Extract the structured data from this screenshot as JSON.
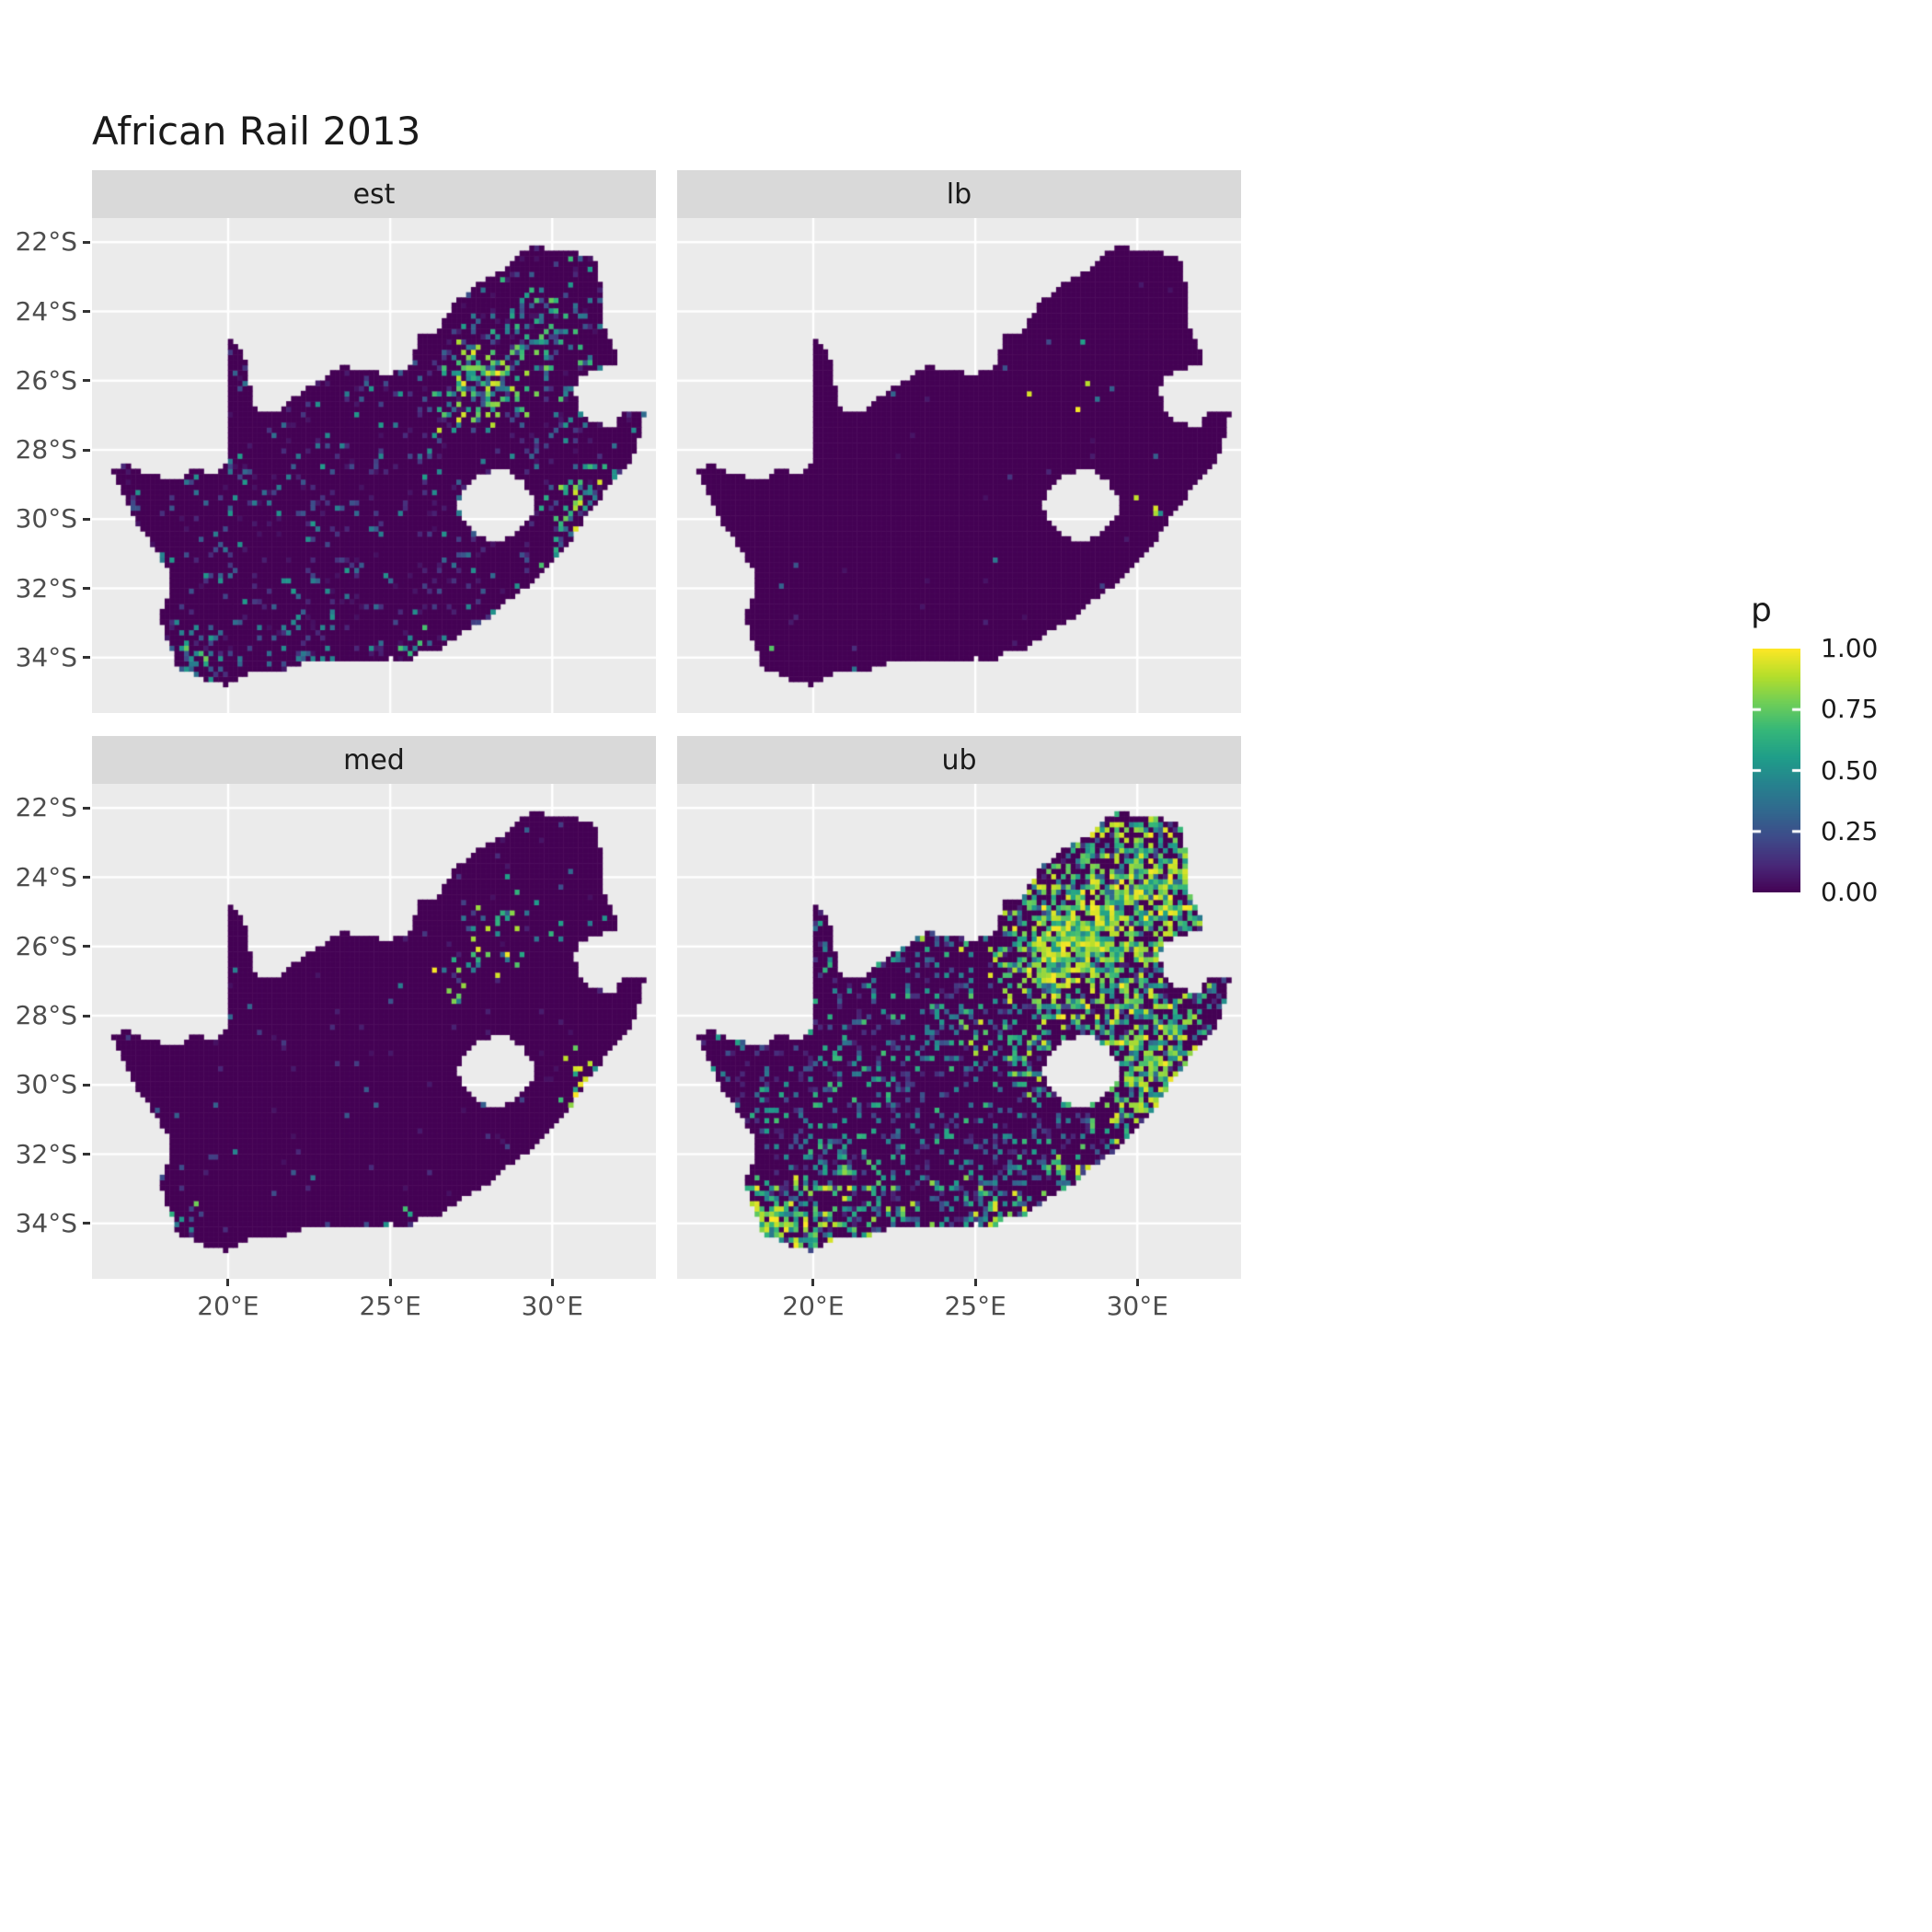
{
  "title": "African Rail 2013",
  "chart_data": {
    "type": "heatmap",
    "title": "African Rail 2013",
    "subtitle": "",
    "facets": [
      {
        "label": "est",
        "seed": 101,
        "speckle": {
          "base": {
            "d": 0.11,
            "vmin": 0.04,
            "vmax": 0.55,
            "pow": 2.0
          },
          "clusters": [
            {
              "lon": 28.05,
              "lat": -26.1,
              "r": 0.9,
              "d": 0.65,
              "vmin": 0.15,
              "vmax": 1.0
            },
            {
              "lon": 27.7,
              "lat": -25.6,
              "r": 0.7,
              "d": 0.35,
              "vmin": 0.1,
              "vmax": 0.9
            },
            {
              "lon": 26.95,
              "lat": -26.85,
              "r": 0.45,
              "d": 0.55,
              "vmin": 0.15,
              "vmax": 0.95
            },
            {
              "lon": 29.4,
              "lat": -24.9,
              "r": 1.4,
              "d": 0.22,
              "vmin": 0.08,
              "vmax": 0.8
            },
            {
              "lon": 29.9,
              "lat": -23.2,
              "r": 1.2,
              "d": 0.15,
              "vmin": 0.08,
              "vmax": 0.7
            },
            {
              "lon": 30.9,
              "lat": -29.7,
              "r": 0.7,
              "d": 0.55,
              "vmin": 0.2,
              "vmax": 1.0
            },
            {
              "lon": 30.3,
              "lat": -30.4,
              "r": 0.6,
              "d": 0.3,
              "vmin": 0.1,
              "vmax": 0.8
            },
            {
              "lon": 18.6,
              "lat": -33.95,
              "r": 0.55,
              "d": 0.5,
              "vmin": 0.15,
              "vmax": 0.9
            },
            {
              "lon": 19.5,
              "lat": -34.4,
              "r": 0.8,
              "d": 0.25,
              "vmin": 0.08,
              "vmax": 0.6
            },
            {
              "lon": 25.6,
              "lat": -33.9,
              "r": 0.5,
              "d": 0.3,
              "vmin": 0.1,
              "vmax": 0.8
            },
            {
              "lon": 27.9,
              "lat": -33.0,
              "r": 0.4,
              "d": 0.3,
              "vmin": 0.1,
              "vmax": 0.8
            },
            {
              "lon": 22.0,
              "lat": -33.8,
              "r": 1.5,
              "d": 0.12,
              "vmin": 0.05,
              "vmax": 0.5
            }
          ]
        }
      },
      {
        "label": "lb",
        "seed": 202,
        "speckle": {
          "base": {
            "d": 0.006,
            "vmin": 0.04,
            "vmax": 0.4,
            "pow": 2.0
          },
          "clusters": [
            {
              "lon": 28.05,
              "lat": -26.1,
              "r": 0.9,
              "d": 0.04,
              "vmin": 0.2,
              "vmax": 1.0
            },
            {
              "lon": 26.95,
              "lat": -26.85,
              "r": 0.4,
              "d": 0.06,
              "vmin": 0.3,
              "vmax": 1.0
            },
            {
              "lon": 30.9,
              "lat": -29.7,
              "r": 0.5,
              "d": 0.06,
              "vmin": 0.3,
              "vmax": 1.0
            },
            {
              "lon": 18.6,
              "lat": -33.95,
              "r": 0.4,
              "d": 0.04,
              "vmin": 0.2,
              "vmax": 0.9
            }
          ]
        }
      },
      {
        "label": "med",
        "seed": 303,
        "speckle": {
          "base": {
            "d": 0.018,
            "vmin": 0.04,
            "vmax": 0.45,
            "pow": 2.0
          },
          "clusters": [
            {
              "lon": 28.05,
              "lat": -26.0,
              "r": 1.0,
              "d": 0.2,
              "vmin": 0.15,
              "vmax": 1.0
            },
            {
              "lon": 26.95,
              "lat": -26.85,
              "r": 0.45,
              "d": 0.35,
              "vmin": 0.25,
              "vmax": 1.0
            },
            {
              "lon": 27.7,
              "lat": -25.6,
              "r": 0.6,
              "d": 0.15,
              "vmin": 0.1,
              "vmax": 0.9
            },
            {
              "lon": 30.9,
              "lat": -29.7,
              "r": 0.6,
              "d": 0.35,
              "vmin": 0.25,
              "vmax": 1.0
            },
            {
              "lon": 18.6,
              "lat": -33.95,
              "r": 0.5,
              "d": 0.15,
              "vmin": 0.15,
              "vmax": 0.9
            },
            {
              "lon": 29.6,
              "lat": -24.8,
              "r": 1.2,
              "d": 0.07,
              "vmin": 0.08,
              "vmax": 0.7
            },
            {
              "lon": 25.6,
              "lat": -33.9,
              "r": 0.4,
              "d": 0.12,
              "vmin": 0.1,
              "vmax": 0.8
            }
          ]
        }
      },
      {
        "label": "ub",
        "seed": 404,
        "speckle": {
          "base": {
            "d": 0.22,
            "vmin": 0.08,
            "vmax": 0.7,
            "pow": 1.6
          },
          "clusters": [
            {
              "lon": 28.2,
              "lat": -25.9,
              "r": 1.5,
              "d": 0.95,
              "vmin": 0.45,
              "vmax": 1.0
            },
            {
              "lon": 27.3,
              "lat": -26.9,
              "r": 0.8,
              "d": 0.6,
              "vmin": 0.3,
              "vmax": 1.0
            },
            {
              "lon": 29.8,
              "lat": -23.6,
              "r": 1.8,
              "d": 0.5,
              "vmin": 0.25,
              "vmax": 1.0
            },
            {
              "lon": 31.2,
              "lat": -24.6,
              "r": 1.2,
              "d": 0.45,
              "vmin": 0.25,
              "vmax": 1.0
            },
            {
              "lon": 31.0,
              "lat": -25.8,
              "r": 0.9,
              "d": 0.5,
              "vmin": 0.3,
              "vmax": 1.0
            },
            {
              "lon": 29.0,
              "lat": -25.5,
              "r": 3.0,
              "d": 0.3,
              "vmin": 0.2,
              "vmax": 0.95
            },
            {
              "lon": 30.8,
              "lat": -29.4,
              "r": 1.2,
              "d": 0.75,
              "vmin": 0.3,
              "vmax": 1.0
            },
            {
              "lon": 30.3,
              "lat": -28.4,
              "r": 1.5,
              "d": 0.4,
              "vmin": 0.2,
              "vmax": 0.95
            },
            {
              "lon": 29.8,
              "lat": -30.8,
              "r": 0.9,
              "d": 0.45,
              "vmin": 0.25,
              "vmax": 0.95
            },
            {
              "lon": 18.7,
              "lat": -33.9,
              "r": 0.8,
              "d": 0.8,
              "vmin": 0.35,
              "vmax": 1.0
            },
            {
              "lon": 19.8,
              "lat": -34.4,
              "r": 1.2,
              "d": 0.5,
              "vmin": 0.3,
              "vmax": 1.0
            },
            {
              "lon": 22.5,
              "lat": -34.0,
              "r": 1.2,
              "d": 0.35,
              "vmin": 0.2,
              "vmax": 0.9
            },
            {
              "lon": 25.6,
              "lat": -33.8,
              "r": 0.8,
              "d": 0.5,
              "vmin": 0.3,
              "vmax": 1.0
            },
            {
              "lon": 27.9,
              "lat": -32.9,
              "r": 0.7,
              "d": 0.45,
              "vmin": 0.3,
              "vmax": 1.0
            },
            {
              "lon": 26.5,
              "lat": -29.2,
              "r": 0.8,
              "d": 0.3,
              "vmin": 0.2,
              "vmax": 0.9
            },
            {
              "lon": 24.7,
              "lat": -28.7,
              "r": 0.5,
              "d": 0.3,
              "vmin": 0.2,
              "vmax": 0.9
            },
            {
              "lon": 20.3,
              "lat": -33.0,
              "r": 1.5,
              "d": 0.2,
              "vmin": 0.15,
              "vmax": 0.8
            }
          ]
        }
      }
    ],
    "x_ticks": [
      {
        "lon": 20,
        "label": "20°E"
      },
      {
        "lon": 25,
        "label": "25°E"
      },
      {
        "lon": 30,
        "label": "30°E"
      }
    ],
    "y_ticks": [
      {
        "lat": -22,
        "label": "22°S"
      },
      {
        "lat": -24,
        "label": "24°S"
      },
      {
        "lat": -26,
        "label": "26°S"
      },
      {
        "lat": -28,
        "label": "28°S"
      },
      {
        "lat": -30,
        "label": "30°S"
      },
      {
        "lat": -32,
        "label": "32°S"
      },
      {
        "lat": -34,
        "label": "34°S"
      }
    ],
    "lon_range": [
      15.8,
      33.2
    ],
    "lat_range": [
      -35.6,
      -21.3
    ],
    "legend": {
      "title": "p",
      "range": [
        0,
        1
      ],
      "colormap": "viridis",
      "ticks": [
        {
          "value": 1.0,
          "label": "1.00"
        },
        {
          "value": 0.75,
          "label": "0.75"
        },
        {
          "value": 0.5,
          "label": "0.50"
        },
        {
          "value": 0.25,
          "label": "0.25"
        },
        {
          "value": 0.0,
          "label": "0.00"
        }
      ]
    },
    "colors": {
      "background": "#FFFFFF",
      "panel_bg": "#EBEBEB",
      "strip_bg": "#D9D9D9",
      "grid": "#FFFFFF",
      "base_fill": "#440154",
      "axis_text": "#4D4D4D",
      "tick_mark": "#333333",
      "viridis_stops": [
        "#440154",
        "#482878",
        "#3E4A89",
        "#31688E",
        "#26828E",
        "#1F9E89",
        "#35B779",
        "#6ECE58",
        "#B5DE2B",
        "#FDE725"
      ]
    },
    "map": {
      "region": "South Africa",
      "outline": [
        [
          16.45,
          -28.6
        ],
        [
          16.95,
          -28.4
        ],
        [
          17.35,
          -28.7
        ],
        [
          17.95,
          -28.78
        ],
        [
          18.5,
          -28.87
        ],
        [
          19.0,
          -28.5
        ],
        [
          19.5,
          -28.73
        ],
        [
          19.98,
          -28.42
        ],
        [
          19.98,
          -24.77
        ],
        [
          20.35,
          -25.1
        ],
        [
          20.6,
          -25.5
        ],
        [
          20.63,
          -26.05
        ],
        [
          20.85,
          -26.82
        ],
        [
          21.55,
          -26.85
        ],
        [
          22.15,
          -26.4
        ],
        [
          22.85,
          -26.0
        ],
        [
          23.45,
          -25.6
        ],
        [
          24.05,
          -25.65
        ],
        [
          24.8,
          -25.82
        ],
        [
          25.4,
          -25.72
        ],
        [
          25.65,
          -25.45
        ],
        [
          25.9,
          -24.72
        ],
        [
          26.45,
          -24.62
        ],
        [
          26.9,
          -23.9
        ],
        [
          27.25,
          -23.55
        ],
        [
          27.95,
          -23.05
        ],
        [
          28.4,
          -22.85
        ],
        [
          29.05,
          -22.22
        ],
        [
          29.5,
          -22.13
        ],
        [
          30.0,
          -22.25
        ],
        [
          30.55,
          -22.3
        ],
        [
          31.3,
          -22.4
        ],
        [
          31.55,
          -23.5
        ],
        [
          31.55,
          -24.4
        ],
        [
          31.9,
          -25.0
        ],
        [
          32.02,
          -25.45
        ],
        [
          31.35,
          -25.72
        ],
        [
          30.8,
          -25.85
        ],
        [
          30.68,
          -26.4
        ],
        [
          30.88,
          -26.9
        ],
        [
          31.2,
          -27.2
        ],
        [
          31.65,
          -27.32
        ],
        [
          31.97,
          -27.3
        ],
        [
          32.13,
          -26.85
        ],
        [
          32.89,
          -26.86
        ],
        [
          32.58,
          -27.95
        ],
        [
          32.28,
          -28.55
        ],
        [
          31.75,
          -29.05
        ],
        [
          31.05,
          -29.88
        ],
        [
          30.55,
          -30.65
        ],
        [
          29.95,
          -31.25
        ],
        [
          29.25,
          -31.95
        ],
        [
          28.55,
          -32.4
        ],
        [
          27.9,
          -32.95
        ],
        [
          27.35,
          -33.2
        ],
        [
          26.5,
          -33.75
        ],
        [
          25.95,
          -33.72
        ],
        [
          25.65,
          -34.05
        ],
        [
          24.95,
          -34.02
        ],
        [
          24.0,
          -34.1
        ],
        [
          23.3,
          -34.1
        ],
        [
          22.55,
          -34.05
        ],
        [
          22.15,
          -34.2
        ],
        [
          21.5,
          -34.42
        ],
        [
          20.5,
          -34.48
        ],
        [
          20.0,
          -34.82
        ],
        [
          19.3,
          -34.62
        ],
        [
          18.82,
          -34.38
        ],
        [
          18.42,
          -34.32
        ],
        [
          18.32,
          -33.92
        ],
        [
          18.02,
          -33.2
        ],
        [
          17.88,
          -32.78
        ],
        [
          18.28,
          -32.05
        ],
        [
          18.22,
          -31.55
        ],
        [
          17.55,
          -30.6
        ],
        [
          17.05,
          -29.9
        ],
        [
          16.8,
          -29.3
        ]
      ],
      "holes": [
        [
          [
            27.05,
            -29.6
          ],
          [
            27.35,
            -29.05
          ],
          [
            27.55,
            -28.8
          ],
          [
            28.15,
            -28.62
          ],
          [
            28.65,
            -28.6
          ],
          [
            29.1,
            -28.92
          ],
          [
            29.38,
            -29.35
          ],
          [
            29.45,
            -29.8
          ],
          [
            29.1,
            -30.25
          ],
          [
            28.5,
            -30.58
          ],
          [
            28.05,
            -30.65
          ],
          [
            27.7,
            -30.42
          ],
          [
            27.3,
            -30.1
          ]
        ]
      ]
    }
  }
}
